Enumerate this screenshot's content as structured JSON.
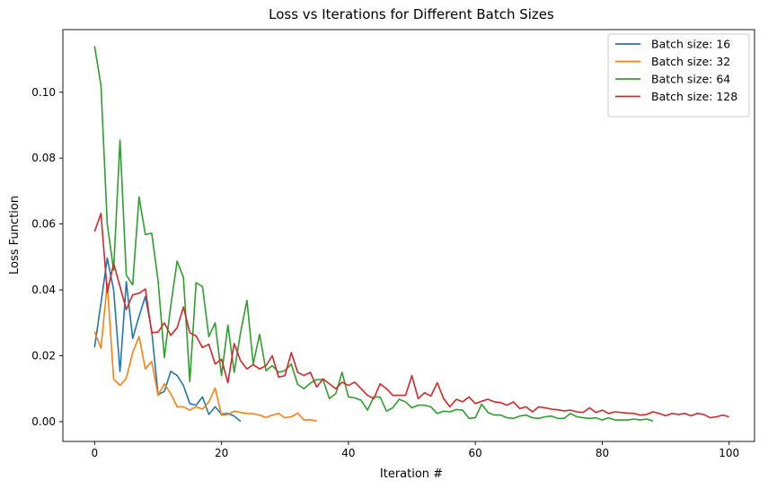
{
  "chart_data": {
    "type": "line",
    "title": "Loss vs Iterations for Different Batch Sizes",
    "xlabel": "Iteration #",
    "ylabel": "Loss Function",
    "xlim": [
      -5,
      104
    ],
    "ylim": [
      -0.006,
      0.119
    ],
    "xticks": [
      0,
      20,
      40,
      60,
      80,
      100
    ],
    "yticks": [
      0.0,
      0.02,
      0.04,
      0.06,
      0.08,
      0.1
    ],
    "ytick_labels": [
      "0.00",
      "0.02",
      "0.04",
      "0.06",
      "0.08",
      "0.10"
    ],
    "grid": false,
    "legend_position": "top-right",
    "series": [
      {
        "name": "Batch size: 16",
        "color": "#1f77b4",
        "values": [
          0.0225,
          0.036,
          0.0497,
          0.04,
          0.0152,
          0.0425,
          0.0253,
          0.032,
          0.038,
          0.0275,
          0.0082,
          0.0092,
          0.0153,
          0.014,
          0.011,
          0.0055,
          0.005,
          0.0075,
          0.0022,
          0.0045,
          0.0023,
          0.0025,
          0.0017,
          0.0001
        ]
      },
      {
        "name": "Batch size: 32",
        "color": "#ff7f0e",
        "values": [
          0.0273,
          0.0223,
          0.042,
          0.0129,
          0.011,
          0.0132,
          0.021,
          0.0258,
          0.016,
          0.0183,
          0.008,
          0.0115,
          0.0085,
          0.0045,
          0.0045,
          0.0035,
          0.0045,
          0.0038,
          0.006,
          0.0102,
          0.002,
          0.0022,
          0.0032,
          0.0028,
          0.0025,
          0.0024,
          0.002,
          0.0013,
          0.002,
          0.0025,
          0.0012,
          0.0015,
          0.0026,
          0.0005,
          0.0006,
          0.0002
        ]
      },
      {
        "name": "Batch size: 64",
        "color": "#2ca02c",
        "values": [
          0.114,
          0.102,
          0.06,
          0.046,
          0.0855,
          0.0445,
          0.0415,
          0.0682,
          0.0568,
          0.0572,
          0.0428,
          0.0195,
          0.0352,
          0.0487,
          0.0438,
          0.0122,
          0.0422,
          0.041,
          0.0258,
          0.03,
          0.014,
          0.0293,
          0.015,
          0.027,
          0.0368,
          0.0175,
          0.0265,
          0.0155,
          0.017,
          0.015,
          0.0155,
          0.0175,
          0.0113,
          0.01,
          0.0117,
          0.0128,
          0.0128,
          0.007,
          0.0085,
          0.015,
          0.0075,
          0.0072,
          0.0065,
          0.0035,
          0.0075,
          0.0075,
          0.0032,
          0.0042,
          0.0068,
          0.006,
          0.0042,
          0.005,
          0.005,
          0.0045,
          0.0025,
          0.0032,
          0.003,
          0.0037,
          0.0035,
          0.001,
          0.0012,
          0.0053,
          0.0028,
          0.002,
          0.002,
          0.0012,
          0.001,
          0.0017,
          0.002,
          0.0012,
          0.001,
          0.0015,
          0.0017,
          0.001,
          0.001,
          0.0025,
          0.0015,
          0.0012,
          0.001,
          0.0012,
          0.0005,
          0.0012,
          0.0005,
          0.0005,
          0.0005,
          0.0008,
          0.0005,
          0.0008,
          0.0002
        ]
      },
      {
        "name": "Batch size: 128",
        "color": "#d62728",
        "values": [
          0.0577,
          0.0632,
          0.0392,
          0.048,
          0.041,
          0.034,
          0.0385,
          0.039,
          0.0403,
          0.027,
          0.0272,
          0.03,
          0.0262,
          0.0285,
          0.0348,
          0.027,
          0.026,
          0.0225,
          0.0235,
          0.0175,
          0.019,
          0.0118,
          0.0237,
          0.0185,
          0.016,
          0.0173,
          0.016,
          0.017,
          0.02,
          0.0135,
          0.014,
          0.021,
          0.015,
          0.014,
          0.015,
          0.0105,
          0.013,
          0.0115,
          0.01,
          0.012,
          0.011,
          0.012,
          0.01,
          0.008,
          0.007,
          0.0115,
          0.01,
          0.008,
          0.008,
          0.008,
          0.014,
          0.007,
          0.0088,
          0.0078,
          0.0118,
          0.007,
          0.0045,
          0.0068,
          0.006,
          0.0075,
          0.0055,
          0.0062,
          0.0068,
          0.006,
          0.0058,
          0.005,
          0.006,
          0.004,
          0.0045,
          0.003,
          0.0045,
          0.0042,
          0.0038,
          0.0036,
          0.0033,
          0.0035,
          0.003,
          0.0028,
          0.0042,
          0.0028,
          0.0035,
          0.0025,
          0.003,
          0.0028,
          0.0026,
          0.0025,
          0.002,
          0.0022,
          0.003,
          0.0025,
          0.0018,
          0.0025,
          0.0022,
          0.0025,
          0.0018,
          0.0025,
          0.0022,
          0.0012,
          0.0015,
          0.002,
          0.0015
        ]
      }
    ]
  }
}
